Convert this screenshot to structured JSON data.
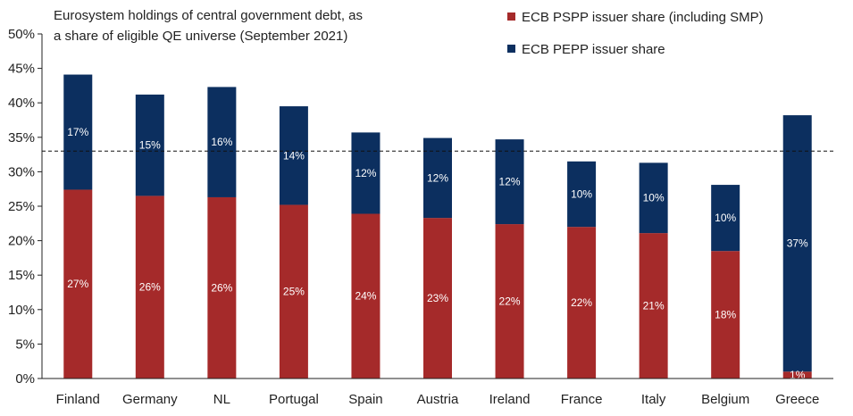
{
  "chart_data": {
    "type": "bar",
    "stacked": true,
    "title_lines": [
      "Eurosystem holdings of central government debt, as",
      "a share of eligible QE universe (September 2021)"
    ],
    "categories": [
      "Finland",
      "Germany",
      "NL",
      "Portugal",
      "Spain",
      "Austria",
      "Ireland",
      "France",
      "Italy",
      "Belgium",
      "Greece"
    ],
    "series": [
      {
        "name": "ECB PSPP issuer share (including SMP)",
        "color": "#a52a2a",
        "values": [
          27.4,
          26.5,
          26.3,
          25.2,
          23.9,
          23.3,
          22.4,
          22.0,
          21.1,
          18.5,
          1.0
        ],
        "labels": [
          "27%",
          "26%",
          "26%",
          "25%",
          "24%",
          "23%",
          "22%",
          "22%",
          "21%",
          "18%",
          "1%"
        ]
      },
      {
        "name": "ECB PEPP issuer share",
        "color": "#0c2f5f",
        "values": [
          16.7,
          14.7,
          16.0,
          14.3,
          11.8,
          11.6,
          12.3,
          9.5,
          10.2,
          9.6,
          37.2
        ],
        "labels": [
          "17%",
          "15%",
          "16%",
          "14%",
          "12%",
          "12%",
          "12%",
          "10%",
          "10%",
          "10%",
          "37%"
        ]
      }
    ],
    "ylim": [
      0,
      50
    ],
    "y_ticks": [
      "0%",
      "5%",
      "10%",
      "15%",
      "20%",
      "25%",
      "30%",
      "35%",
      "40%",
      "45%",
      "50%"
    ],
    "reference_line": 33,
    "legend_position": "top-right",
    "grid": false
  }
}
